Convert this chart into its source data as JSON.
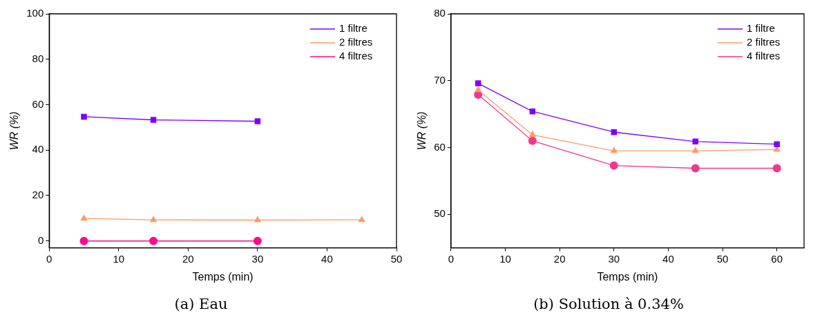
{
  "chart_data": [
    {
      "type": "line",
      "title": "(a) Eau",
      "xlabel": "Temps (min)",
      "ylabel": "WR (%)",
      "xlim": [
        0,
        50
      ],
      "xticks": [
        0,
        10,
        20,
        30,
        40,
        50
      ],
      "ylim": [
        -3,
        100
      ],
      "yticks": [
        0,
        20,
        40,
        60,
        80,
        100
      ],
      "grid": false,
      "legend": "top right",
      "line_style": "solid",
      "series": [
        {
          "name": "1 filtre",
          "color": "#8000ff",
          "marker": "square",
          "x": [
            5,
            15,
            30
          ],
          "values": [
            54.7,
            53.3,
            52.7
          ]
        },
        {
          "name": "2 filtres",
          "color": "#ff9966",
          "marker": "triangle",
          "x": [
            5,
            15,
            30,
            45
          ],
          "values": [
            9.9,
            9.3,
            9.2,
            9.3
          ]
        },
        {
          "name": "4 filtres",
          "color": "#ff0a8c",
          "marker": "circle",
          "x": [
            5,
            15,
            30
          ],
          "values": [
            0,
            0,
            0
          ]
        }
      ]
    },
    {
      "type": "line",
      "title": "(b) Solution à 0.34%",
      "xlabel": "Temps (min)",
      "ylabel": "WR (%)",
      "xlim": [
        0,
        65
      ],
      "xticks": [
        0,
        10,
        20,
        30,
        40,
        50,
        60
      ],
      "ylim": [
        45,
        80
      ],
      "yticks": [
        50,
        60,
        70,
        80
      ],
      "grid": false,
      "legend": "top right",
      "line_style": "solid",
      "series": [
        {
          "name": "1 filtre",
          "color": "#8000ff",
          "marker": "square",
          "x": [
            5,
            15,
            30,
            45,
            60
          ],
          "values": [
            69.6,
            65.4,
            62.3,
            60.9,
            60.5
          ]
        },
        {
          "name": "2 filtres",
          "color": "#ff9966",
          "marker": "triangle",
          "x": [
            5,
            15,
            30,
            45,
            60
          ],
          "values": [
            68.6,
            61.9,
            59.5,
            59.5,
            59.7
          ]
        },
        {
          "name": "4 filtres",
          "color": "#f0388c",
          "marker": "circle",
          "x": [
            5,
            15,
            30,
            45,
            60
          ],
          "values": [
            67.9,
            61.0,
            57.3,
            56.9,
            56.9
          ]
        }
      ]
    }
  ]
}
